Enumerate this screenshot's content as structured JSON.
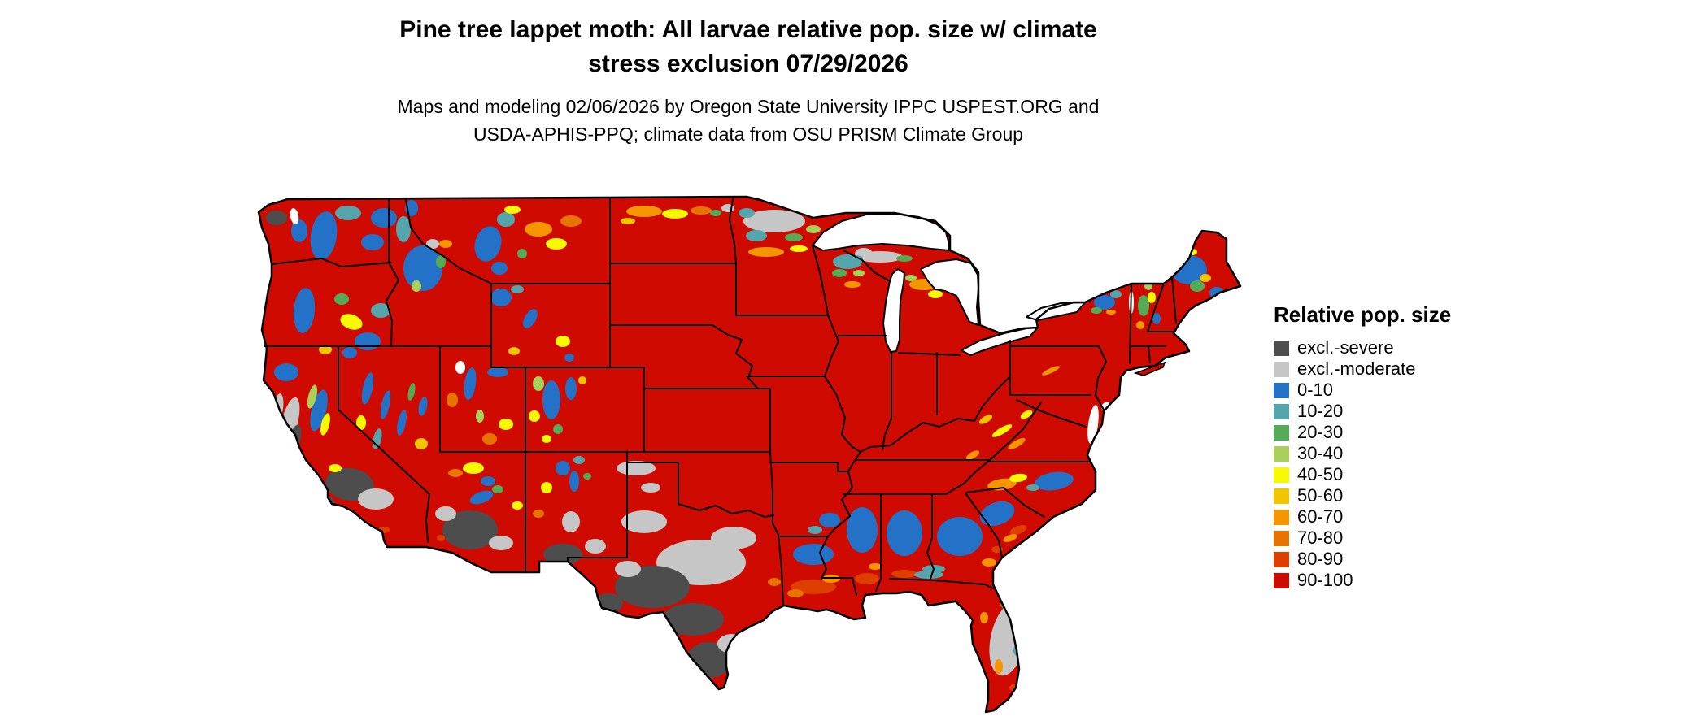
{
  "header": {
    "title_line1": "Pine tree lappet moth: All larvae relative pop. size w/ climate",
    "title_line2": "stress exclusion 07/29/2026",
    "subtitle_line1": "Maps and modeling 02/06/2026 by Oregon State University IPPC USPEST.ORG and",
    "subtitle_line2": "USDA-APHIS-PPQ; climate data from OSU PRISM Climate Group"
  },
  "legend": {
    "title": "Relative pop. size",
    "items": [
      {
        "label": "excl.-severe",
        "color_key": "D"
      },
      {
        "label": "excl.-moderate",
        "color_key": "d"
      },
      {
        "label": "0-10",
        "color_key": "B"
      },
      {
        "label": "10-20",
        "color_key": "b"
      },
      {
        "label": "20-30",
        "color_key": "G"
      },
      {
        "label": "30-40",
        "color_key": "g"
      },
      {
        "label": "40-50",
        "color_key": "Y"
      },
      {
        "label": "50-60",
        "color_key": "y"
      },
      {
        "label": "60-70",
        "color_key": "O"
      },
      {
        "label": "70-80",
        "color_key": "o"
      },
      {
        "label": "80-90",
        "color_key": "r"
      },
      {
        "label": "90-100",
        "color_key": "R"
      }
    ]
  },
  "map": {
    "palette": {
      "D": "#4d4d4d",
      "d": "#c6c6c6",
      "B": "#2472c8",
      "b": "#55a5ad",
      "G": "#55aa55",
      "g": "#a8d05a",
      "Y": "#f8f800",
      "y": "#f2c500",
      "O": "#f59600",
      "o": "#e87400",
      "r": "#de3e00",
      "R": "#cf0a00",
      "W": "#ffffff"
    },
    "base_key": "R",
    "blobs": [
      [
        "B",
        398,
        290,
        16,
        30,
        8
      ],
      [
        "D",
        340,
        268,
        13,
        9,
        0
      ],
      [
        "B",
        368,
        284,
        10,
        14,
        0
      ],
      [
        "b",
        428,
        262,
        16,
        9,
        0
      ],
      [
        "B",
        458,
        298,
        14,
        10,
        0
      ],
      [
        "B",
        472,
        268,
        16,
        12,
        0
      ],
      [
        "W",
        362,
        266,
        5,
        10,
        -10
      ],
      [
        "B",
        374,
        382,
        13,
        28,
        5
      ],
      [
        "G",
        420,
        368,
        9,
        7,
        0
      ],
      [
        "Y",
        432,
        396,
        14,
        9,
        20
      ],
      [
        "b",
        468,
        382,
        12,
        9,
        0
      ],
      [
        "B",
        452,
        420,
        16,
        11,
        0
      ],
      [
        "B",
        430,
        434,
        9,
        7,
        0
      ],
      [
        "y",
        400,
        430,
        8,
        6,
        0
      ],
      [
        "B",
        352,
        458,
        15,
        11,
        0
      ],
      [
        "d",
        356,
        520,
        10,
        32,
        14
      ],
      [
        "D",
        362,
        542,
        7,
        20,
        14
      ],
      [
        "B",
        392,
        505,
        9,
        26,
        14
      ],
      [
        "g",
        384,
        488,
        5,
        15,
        14
      ],
      [
        "Y",
        400,
        522,
        5,
        14,
        14
      ],
      [
        "d",
        342,
        502,
        6,
        18,
        8
      ],
      [
        "D",
        352,
        562,
        8,
        15,
        12
      ],
      [
        "D",
        430,
        596,
        30,
        20,
        8
      ],
      [
        "d",
        462,
        614,
        22,
        13,
        0
      ],
      [
        "D",
        398,
        618,
        14,
        9,
        10
      ],
      [
        "Y",
        412,
        576,
        8,
        5,
        0
      ],
      [
        "r",
        472,
        652,
        7,
        4,
        0
      ],
      [
        "B",
        452,
        478,
        6,
        20,
        12
      ],
      [
        "B",
        474,
        498,
        5,
        18,
        12
      ],
      [
        "B",
        494,
        520,
        5,
        16,
        12
      ],
      [
        "b",
        464,
        540,
        5,
        13,
        12
      ],
      [
        "G",
        506,
        482,
        4,
        11,
        12
      ],
      [
        "Y",
        444,
        520,
        6,
        9,
        0
      ],
      [
        "y",
        518,
        546,
        8,
        7,
        0
      ],
      [
        "B",
        520,
        500,
        5,
        12,
        12
      ],
      [
        "B",
        520,
        330,
        24,
        28,
        0
      ],
      [
        "b",
        496,
        282,
        9,
        16,
        0
      ],
      [
        "B",
        506,
        256,
        8,
        10,
        0
      ],
      [
        "d",
        532,
        300,
        8,
        6,
        0
      ],
      [
        "G",
        542,
        322,
        6,
        8,
        0
      ],
      [
        "g",
        512,
        352,
        6,
        7,
        0
      ],
      [
        "R",
        532,
        392,
        26,
        10,
        -10
      ],
      [
        "R",
        562,
        372,
        12,
        9,
        0
      ],
      [
        "O",
        548,
        300,
        8,
        5,
        0
      ],
      [
        "B",
        600,
        300,
        16,
        22,
        15
      ],
      [
        "b",
        622,
        270,
        11,
        9,
        0
      ],
      [
        "O",
        662,
        282,
        17,
        9,
        0
      ],
      [
        "Y",
        684,
        300,
        13,
        7,
        0
      ],
      [
        "o",
        702,
        272,
        13,
        7,
        0
      ],
      [
        "G",
        642,
        312,
        6,
        6,
        0
      ],
      [
        "Y",
        630,
        258,
        10,
        5,
        0
      ],
      [
        "B",
        614,
        330,
        10,
        8,
        0
      ],
      [
        "B",
        616,
        366,
        13,
        11,
        0
      ],
      [
        "b",
        636,
        356,
        8,
        5,
        0
      ],
      [
        "B",
        652,
        392,
        7,
        13,
        30
      ],
      [
        "Y",
        692,
        420,
        9,
        7,
        0
      ],
      [
        "y",
        632,
        432,
        7,
        5,
        0
      ],
      [
        "B",
        700,
        440,
        6,
        5,
        0
      ],
      [
        "W",
        566,
        452,
        6,
        8,
        0
      ],
      [
        "B",
        578,
        472,
        7,
        20,
        8
      ],
      [
        "B",
        612,
        458,
        13,
        6,
        0
      ],
      [
        "o",
        556,
        492,
        7,
        9,
        0
      ],
      [
        "Y",
        622,
        522,
        9,
        7,
        0
      ],
      [
        "o",
        602,
        540,
        9,
        7,
        0
      ],
      [
        "g",
        590,
        512,
        5,
        8,
        0
      ],
      [
        "B",
        678,
        492,
        11,
        24,
        0
      ],
      [
        "B",
        702,
        478,
        7,
        14,
        0
      ],
      [
        "g",
        662,
        472,
        7,
        9,
        0
      ],
      [
        "Y",
        657,
        512,
        7,
        7,
        0
      ],
      [
        "G",
        686,
        528,
        6,
        6,
        0
      ],
      [
        "y",
        716,
        468,
        5,
        5,
        0
      ],
      [
        "Y",
        672,
        540,
        6,
        5,
        0
      ],
      [
        "Y",
        582,
        576,
        13,
        7,
        0
      ],
      [
        "o",
        560,
        582,
        9,
        5,
        0
      ],
      [
        "B",
        600,
        592,
        9,
        6,
        0
      ],
      [
        "B",
        592,
        612,
        15,
        7,
        -20
      ],
      [
        "G",
        612,
        602,
        7,
        5,
        0
      ],
      [
        "D",
        578,
        652,
        34,
        24,
        0
      ],
      [
        "d",
        548,
        632,
        13,
        9,
        0
      ],
      [
        "d",
        616,
        668,
        15,
        9,
        0
      ],
      [
        "r",
        542,
        662,
        5,
        4,
        0
      ],
      [
        "Y",
        636,
        622,
        7,
        5,
        0
      ],
      [
        "B",
        692,
        576,
        9,
        9,
        0
      ],
      [
        "b",
        712,
        566,
        7,
        5,
        0
      ],
      [
        "B",
        706,
        592,
        6,
        13,
        0
      ],
      [
        "d",
        702,
        642,
        11,
        13,
        0
      ],
      [
        "D",
        692,
        682,
        24,
        13,
        0
      ],
      [
        "d",
        732,
        672,
        13,
        9,
        0
      ],
      [
        "Y",
        672,
        600,
        7,
        7,
        0
      ],
      [
        "G",
        722,
        586,
        5,
        4,
        0
      ],
      [
        "o",
        662,
        632,
        7,
        5,
        0
      ],
      [
        "O",
        792,
        260,
        22,
        7,
        0
      ],
      [
        "Y",
        830,
        263,
        16,
        6,
        0
      ],
      [
        "o",
        862,
        259,
        13,
        5,
        0
      ],
      [
        "y",
        772,
        272,
        9,
        4,
        0
      ],
      [
        "d",
        895,
        256,
        8,
        5,
        0
      ],
      [
        "G",
        880,
        262,
        7,
        4,
        0
      ],
      [
        "d",
        782,
        576,
        24,
        9,
        0
      ],
      [
        "d",
        800,
        600,
        12,
        6,
        0
      ],
      [
        "d",
        952,
        272,
        38,
        14,
        0
      ],
      [
        "b",
        930,
        290,
        13,
        7,
        0
      ],
      [
        "G",
        976,
        292,
        11,
        5,
        0
      ],
      [
        "g",
        1000,
        282,
        9,
        5,
        0
      ],
      [
        "O",
        942,
        310,
        22,
        6,
        0
      ],
      [
        "Y",
        982,
        306,
        11,
        4,
        0
      ],
      [
        "b",
        918,
        262,
        10,
        6,
        0
      ],
      [
        "b",
        1042,
        322,
        18,
        9,
        0
      ],
      [
        "d",
        1062,
        312,
        11,
        7,
        0
      ],
      [
        "G",
        1032,
        336,
        9,
        5,
        0
      ],
      [
        "g",
        1056,
        336,
        7,
        4,
        0
      ],
      [
        "O",
        1048,
        350,
        10,
        4,
        0
      ],
      [
        "d",
        1082,
        316,
        28,
        7,
        0
      ],
      [
        "G",
        1112,
        318,
        10,
        4,
        0
      ],
      [
        "b",
        1052,
        318,
        9,
        4,
        0
      ],
      [
        "O",
        1136,
        350,
        18,
        7,
        0
      ],
      [
        "Y",
        1150,
        362,
        9,
        5,
        0
      ],
      [
        "g",
        1120,
        342,
        7,
        4,
        0
      ],
      [
        "d",
        792,
        642,
        28,
        14,
        0
      ],
      [
        "d",
        862,
        692,
        55,
        28,
        0
      ],
      [
        "d",
        902,
        662,
        28,
        14,
        0
      ],
      [
        "D",
        802,
        722,
        46,
        26,
        0
      ],
      [
        "D",
        852,
        762,
        38,
        20,
        0
      ],
      [
        "D",
        872,
        812,
        28,
        22,
        0
      ],
      [
        "d",
        900,
        792,
        18,
        12,
        0
      ],
      [
        "D",
        748,
        742,
        18,
        12,
        0
      ],
      [
        "d",
        772,
        700,
        16,
        10,
        0
      ],
      [
        "R",
        936,
        744,
        13,
        9,
        20
      ],
      [
        "r",
        916,
        782,
        10,
        7,
        20
      ],
      [
        "o",
        952,
        716,
        8,
        5,
        0
      ],
      [
        "B",
        1000,
        682,
        25,
        13,
        0
      ],
      [
        "r",
        1000,
        722,
        28,
        9,
        0
      ],
      [
        "O",
        1022,
        712,
        11,
        5,
        0
      ],
      [
        "o",
        978,
        730,
        10,
        5,
        0
      ],
      [
        "B",
        1020,
        640,
        13,
        9,
        0
      ],
      [
        "b",
        1002,
        652,
        9,
        5,
        0
      ],
      [
        "B",
        1060,
        652,
        19,
        28,
        0
      ],
      [
        "r",
        1066,
        712,
        15,
        7,
        0
      ],
      [
        "O",
        1076,
        697,
        8,
        4,
        0
      ],
      [
        "B",
        1112,
        656,
        22,
        28,
        0
      ],
      [
        "r",
        1112,
        706,
        16,
        5,
        0
      ],
      [
        "B",
        1180,
        660,
        28,
        24,
        0
      ],
      [
        "O",
        1216,
        692,
        9,
        5,
        0
      ],
      [
        "r",
        1226,
        676,
        7,
        4,
        0
      ],
      [
        "b",
        1148,
        700,
        14,
        5,
        0
      ],
      [
        "b",
        1142,
        707,
        18,
        5,
        0
      ],
      [
        "d",
        1240,
        786,
        22,
        46,
        12
      ],
      [
        "G",
        1238,
        744,
        8,
        5,
        0
      ],
      [
        "b",
        1252,
        800,
        6,
        8,
        0
      ],
      [
        "O",
        1228,
        820,
        5,
        9,
        0
      ],
      [
        "r",
        1250,
        846,
        9,
        5,
        0
      ],
      [
        "O",
        1210,
        760,
        5,
        7,
        0
      ],
      [
        "Y",
        1246,
        762,
        5,
        4,
        0
      ],
      [
        "B",
        1226,
        632,
        22,
        14,
        -20
      ],
      [
        "r",
        1252,
        652,
        11,
        5,
        -20
      ],
      [
        "O",
        1242,
        662,
        9,
        4,
        -20
      ],
      [
        "O",
        1232,
        596,
        18,
        7,
        -8
      ],
      [
        "Y",
        1252,
        588,
        11,
        5,
        -8
      ],
      [
        "B",
        1296,
        592,
        24,
        11,
        -8
      ],
      [
        "b",
        1270,
        600,
        8,
        4,
        0
      ],
      [
        "Y",
        1232,
        530,
        14,
        4,
        -30
      ],
      [
        "O",
        1250,
        546,
        12,
        4,
        -30
      ],
      [
        "y",
        1212,
        516,
        9,
        4,
        -30
      ],
      [
        "O",
        1196,
        560,
        9,
        4,
        -30
      ],
      [
        "Y",
        1262,
        510,
        8,
        4,
        -30
      ],
      [
        "O",
        1292,
        456,
        12,
        3,
        -25
      ],
      [
        "W",
        1344,
        522,
        6,
        24,
        8
      ],
      [
        "W",
        1360,
        500,
        6,
        5,
        -30
      ],
      [
        "B",
        1358,
        372,
        13,
        9,
        0
      ],
      [
        "b",
        1372,
        362,
        7,
        5,
        0
      ],
      [
        "G",
        1348,
        382,
        7,
        4,
        0
      ],
      [
        "Y",
        1342,
        366,
        5,
        3,
        0
      ],
      [
        "O",
        1366,
        384,
        6,
        3,
        0
      ],
      [
        "W",
        1391,
        372,
        3,
        14,
        0
      ],
      [
        "G",
        1406,
        376,
        7,
        13,
        0
      ],
      [
        "Y",
        1416,
        366,
        5,
        7,
        0
      ],
      [
        "B",
        1422,
        392,
        5,
        7,
        0
      ],
      [
        "O",
        1402,
        400,
        5,
        5,
        0
      ],
      [
        "g",
        1412,
        352,
        5,
        5,
        0
      ],
      [
        "B",
        1462,
        332,
        22,
        18,
        0
      ],
      [
        "G",
        1472,
        352,
        9,
        7,
        0
      ],
      [
        "y",
        1482,
        342,
        7,
        5,
        0
      ],
      [
        "B",
        1496,
        360,
        9,
        7,
        0
      ],
      [
        "g",
        1452,
        316,
        7,
        5,
        0
      ],
      [
        "Y",
        1466,
        310,
        6,
        4,
        0
      ],
      [
        "O",
        1488,
        378,
        6,
        4,
        0
      ]
    ]
  }
}
